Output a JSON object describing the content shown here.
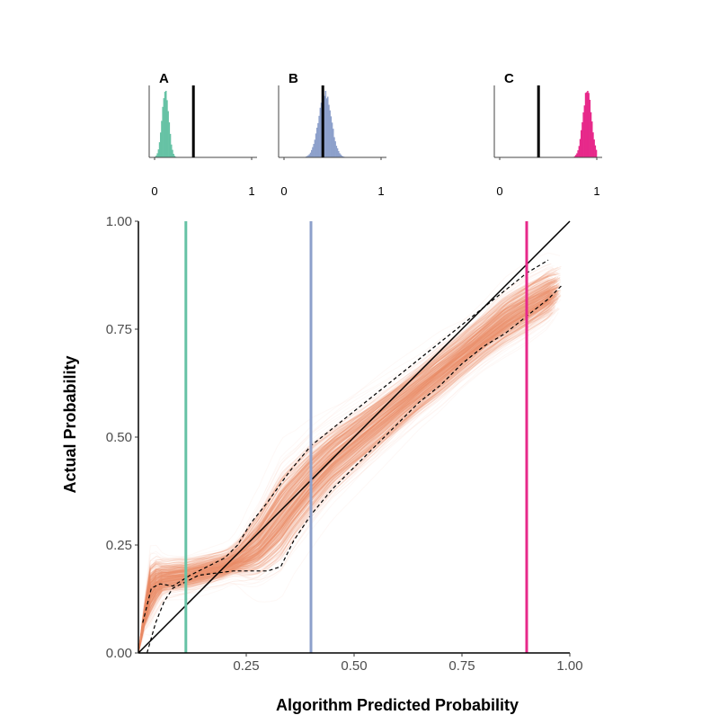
{
  "chart_data": [
    {
      "type": "line",
      "title": "",
      "xlabel": "Algorithm Predicted Probability",
      "ylabel": "Actual Probability",
      "xlim": [
        0,
        1
      ],
      "ylim": [
        0,
        1
      ],
      "x_ticks": [
        0.25,
        0.5,
        0.75,
        1.0
      ],
      "x_tick_labels": [
        "0.25",
        "0.50",
        "0.75",
        "1.00"
      ],
      "y_ticks": [
        0.0,
        0.25,
        0.5,
        0.75,
        1.0
      ],
      "y_tick_labels": [
        "0.00",
        "0.25",
        "0.50",
        "0.75",
        "1.00"
      ],
      "grid": false,
      "colors": {
        "curves": "#ee9068",
        "identity": "#000000",
        "band": "#000000"
      },
      "series": [
        {
          "name": "",
          "role": "median-calibration-curve",
          "x": [
            0.0,
            0.01,
            0.02,
            0.03,
            0.05,
            0.08,
            0.12,
            0.16,
            0.2,
            0.24,
            0.28,
            0.32,
            0.35,
            0.4,
            0.45,
            0.5,
            0.55,
            0.6,
            0.65,
            0.7,
            0.75,
            0.8,
            0.85,
            0.9,
            0.95,
            0.98
          ],
          "y": [
            0.0,
            0.06,
            0.12,
            0.15,
            0.17,
            0.175,
            0.18,
            0.19,
            0.2,
            0.22,
            0.25,
            0.3,
            0.34,
            0.4,
            0.45,
            0.49,
            0.53,
            0.57,
            0.61,
            0.65,
            0.69,
            0.73,
            0.77,
            0.8,
            0.83,
            0.85
          ]
        },
        {
          "name": "",
          "role": "upper-band",
          "style": "dashed",
          "x": [
            0.01,
            0.03,
            0.05,
            0.08,
            0.12,
            0.16,
            0.2,
            0.23,
            0.26,
            0.3,
            0.35,
            0.4,
            0.45,
            0.5,
            0.55,
            0.6,
            0.65,
            0.7,
            0.75,
            0.8,
            0.85,
            0.9,
            0.95
          ],
          "y": [
            0.07,
            0.15,
            0.16,
            0.155,
            0.18,
            0.2,
            0.22,
            0.25,
            0.3,
            0.35,
            0.42,
            0.48,
            0.52,
            0.56,
            0.6,
            0.64,
            0.68,
            0.72,
            0.76,
            0.8,
            0.84,
            0.88,
            0.91
          ]
        },
        {
          "name": "",
          "role": "lower-band",
          "style": "dashed",
          "x": [
            0.02,
            0.04,
            0.06,
            0.08,
            0.1,
            0.14,
            0.18,
            0.22,
            0.26,
            0.3,
            0.33,
            0.36,
            0.4,
            0.45,
            0.5,
            0.55,
            0.6,
            0.65,
            0.7,
            0.75,
            0.8,
            0.85,
            0.9,
            0.95,
            0.98
          ],
          "y": [
            0.0,
            0.07,
            0.12,
            0.15,
            0.16,
            0.18,
            0.185,
            0.19,
            0.19,
            0.19,
            0.2,
            0.26,
            0.32,
            0.38,
            0.43,
            0.48,
            0.53,
            0.58,
            0.62,
            0.67,
            0.71,
            0.74,
            0.78,
            0.82,
            0.85
          ]
        },
        {
          "name": "",
          "role": "identity-line",
          "x": [
            0,
            1
          ],
          "y": [
            0,
            1
          ]
        }
      ],
      "vertical_lines": [
        {
          "label": "A",
          "x": 0.11,
          "color": "#66c2a5"
        },
        {
          "label": "B",
          "x": 0.4,
          "color": "#8da0cb"
        },
        {
          "label": "C",
          "x": 0.9,
          "color": "#e7298a"
        }
      ]
    },
    {
      "type": "histogram",
      "label": "A",
      "color": "#66c2a5",
      "xlim": [
        0,
        1
      ],
      "x_tick_labels": [
        "0",
        "1"
      ],
      "marker_x": 0.4,
      "center": 0.11,
      "spread": 0.035
    },
    {
      "type": "histogram",
      "label": "B",
      "color": "#8da0cb",
      "xlim": [
        0,
        1
      ],
      "x_tick_labels": [
        "0",
        "1"
      ],
      "marker_x": 0.4,
      "center": 0.42,
      "spread": 0.065
    },
    {
      "type": "histogram",
      "label": "C",
      "color": "#e7298a",
      "xlim": [
        0,
        1
      ],
      "x_tick_labels": [
        "0",
        "1"
      ],
      "marker_x": 0.4,
      "center": 0.9,
      "spread": 0.045
    }
  ]
}
